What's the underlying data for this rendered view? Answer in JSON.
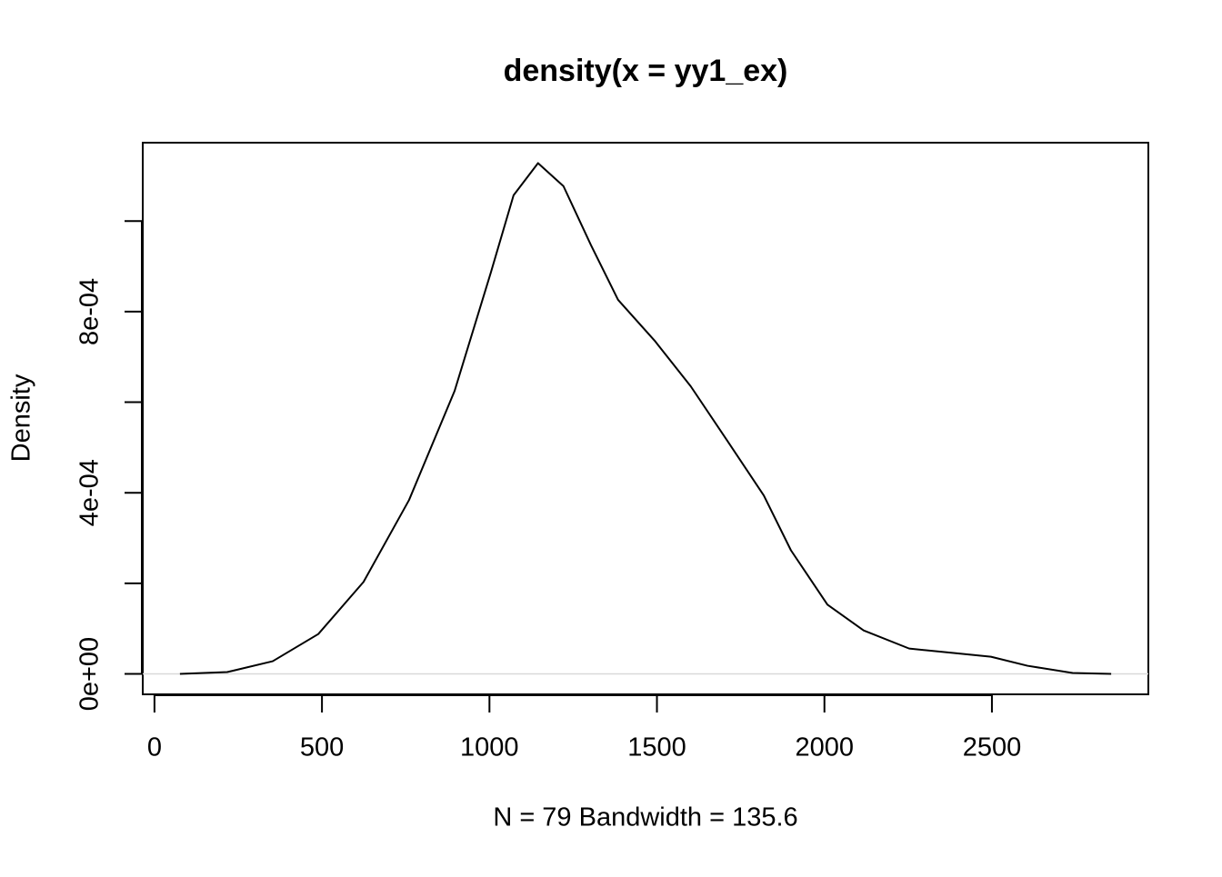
{
  "chart_data": {
    "type": "line",
    "title": "density(x = yy1_ex)",
    "xlabel": "N = 79   Bandwidth = 135.6",
    "ylabel": "Density",
    "x": [
      76,
      217,
      353,
      489,
      624,
      760,
      896,
      1004,
      1072,
      1145,
      1221,
      1303,
      1384,
      1493,
      1601,
      1710,
      1819,
      1900,
      2009,
      2117,
      2253,
      2389,
      2497,
      2606,
      2741,
      2856
    ],
    "series": [
      {
        "color": "#000000",
        "values": [
          0,
          4e-06,
          2.8e-05,
          8.8e-05,
          0.000203,
          0.000384,
          0.000625,
          0.000886,
          0.001057,
          0.001128,
          0.001077,
          0.000947,
          0.000826,
          0.000736,
          0.000635,
          0.000515,
          0.000394,
          0.000273,
          0.000153,
          9.6e-05,
          5.6e-05,
          4.6e-05,
          3.8e-05,
          1.8e-05,
          2e-06,
          0
        ]
      }
    ],
    "xlim": [
      -35,
      2967
    ],
    "ylim": [
      -4.51e-05,
      0.0011731
    ],
    "xticks": [
      0,
      500,
      1000,
      1500,
      2000,
      2500
    ],
    "yticks": [
      {
        "value": 0,
        "label": "0e+00"
      },
      {
        "value": 0.0004,
        "label": "4e-04"
      },
      {
        "value": 0.0008,
        "label": "8e-04"
      }
    ],
    "yticks_unlabeled": [
      0.0002,
      0.0006,
      0.001
    ],
    "zero_line_color": "#d9d9d9"
  }
}
